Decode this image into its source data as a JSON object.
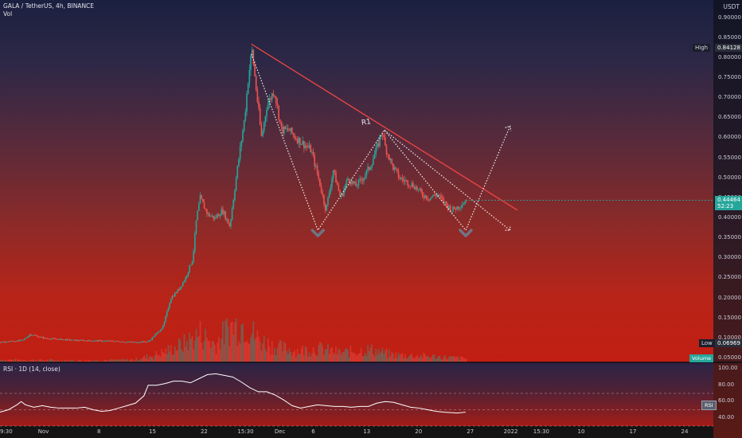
{
  "header": {
    "symbol": "GALA / TetherUS, 4h, BINANCE",
    "volume_label": "Vol",
    "currency": "USDT"
  },
  "price_panel": {
    "high_label": "High",
    "high_value": "0.84128",
    "low_label": "Low",
    "low_value": "0.06969",
    "last_value": "0.44464",
    "countdown": "52:23",
    "volume_tag": "Volume",
    "pattern_label": "R1"
  },
  "rsi_panel": {
    "title": "RSI · 1D (14, close)",
    "tag": "RSI",
    "ticks": [
      "100.00",
      "80.00",
      "60.00",
      "40.00"
    ]
  },
  "colors": {
    "up": "#26a69a",
    "down": "#ef5350",
    "trendline": "#e84444",
    "rsi_line": "#ffffff",
    "last_price": "#26a69a"
  },
  "chart_data": {
    "type": "candlestick",
    "title": "GALA / TetherUS, 4h, BINANCE",
    "price_ticks": [
      "0.90000",
      "0.85000",
      "0.80000",
      "0.75000",
      "0.70000",
      "0.65000",
      "0.60000",
      "0.55000",
      "0.50000",
      "0.45000",
      "0.40000",
      "0.35000",
      "0.30000",
      "0.25000",
      "0.20000",
      "0.15000",
      "0.10000",
      "0.05000"
    ],
    "ylim": [
      0.04,
      0.945
    ],
    "time_ticks": [
      {
        "label": "9:30",
        "x": 0
      },
      {
        "label": "Nov",
        "x": 6
      },
      {
        "label": "8",
        "x": 14
      },
      {
        "label": "15",
        "x": 21
      },
      {
        "label": "22",
        "x": 28
      },
      {
        "label": "15:30",
        "x": 33
      },
      {
        "label": "Dec",
        "x": 38
      },
      {
        "label": "6",
        "x": 43
      },
      {
        "label": "13",
        "x": 50
      },
      {
        "label": "20",
        "x": 57
      },
      {
        "label": "27",
        "x": 64
      },
      {
        "label": "2022",
        "x": 69
      },
      {
        "label": "15:30",
        "x": 73
      },
      {
        "label": "10",
        "x": 79
      },
      {
        "label": "17",
        "x": 86
      },
      {
        "label": "24",
        "x": 93
      }
    ],
    "xlim": [
      0,
      96.5
    ],
    "price_path": [
      [
        0,
        0.09
      ],
      [
        3,
        0.095
      ],
      [
        4,
        0.11
      ],
      [
        6,
        0.1
      ],
      [
        10,
        0.095
      ],
      [
        15,
        0.093
      ],
      [
        18,
        0.09
      ],
      [
        20,
        0.092
      ],
      [
        21,
        0.11
      ],
      [
        22,
        0.13
      ],
      [
        23,
        0.2
      ],
      [
        24,
        0.22
      ],
      [
        25,
        0.25
      ],
      [
        26,
        0.3
      ],
      [
        26.5,
        0.4
      ],
      [
        27,
        0.45
      ],
      [
        28,
        0.41
      ],
      [
        29,
        0.4
      ],
      [
        30,
        0.42
      ],
      [
        31,
        0.38
      ],
      [
        32,
        0.52
      ],
      [
        33,
        0.65
      ],
      [
        33.5,
        0.75
      ],
      [
        34,
        0.82
      ],
      [
        34.7,
        0.7
      ],
      [
        35.3,
        0.6
      ],
      [
        36,
        0.68
      ],
      [
        37,
        0.72
      ],
      [
        38,
        0.62
      ],
      [
        39,
        0.62
      ],
      [
        40,
        0.6
      ],
      [
        42,
        0.57
      ],
      [
        43,
        0.5
      ],
      [
        44,
        0.42
      ],
      [
        45,
        0.52
      ],
      [
        46,
        0.45
      ],
      [
        47,
        0.5
      ],
      [
        48,
        0.48
      ],
      [
        49,
        0.5
      ],
      [
        50,
        0.53
      ],
      [
        51,
        0.58
      ],
      [
        51.6,
        0.62
      ],
      [
        52,
        0.58
      ],
      [
        53,
        0.53
      ],
      [
        54,
        0.5
      ],
      [
        55,
        0.49
      ],
      [
        56,
        0.48
      ],
      [
        57,
        0.46
      ],
      [
        58,
        0.45
      ],
      [
        59,
        0.46
      ],
      [
        60,
        0.44
      ],
      [
        61,
        0.42
      ],
      [
        62,
        0.43
      ],
      [
        63,
        0.445
      ]
    ],
    "volume_path": [
      [
        0,
        4
      ],
      [
        10,
        3
      ],
      [
        18,
        4
      ],
      [
        21,
        12
      ],
      [
        23,
        20
      ],
      [
        25,
        30
      ],
      [
        27,
        45
      ],
      [
        29,
        28
      ],
      [
        31,
        55
      ],
      [
        33,
        60
      ],
      [
        35,
        35
      ],
      [
        37,
        25
      ],
      [
        40,
        18
      ],
      [
        43,
        22
      ],
      [
        46,
        15
      ],
      [
        50,
        20
      ],
      [
        53,
        12
      ],
      [
        57,
        10
      ],
      [
        63,
        6
      ]
    ],
    "trendline": [
      [
        34,
        0.835
      ],
      [
        70,
        0.42
      ]
    ],
    "projection_path": [
      [
        34,
        0.81
      ],
      [
        43,
        0.37
      ],
      [
        52,
        0.62
      ],
      [
        63,
        0.37
      ],
      [
        69,
        0.63
      ]
    ],
    "projection_path_2": [
      [
        52,
        0.62
      ],
      [
        69,
        0.37
      ]
    ],
    "bottoms": [
      [
        43,
        0.37
      ],
      [
        63,
        0.37
      ]
    ],
    "rsi": {
      "ylim": [
        30,
        108
      ],
      "values": [
        [
          0,
          47
        ],
        [
          2,
          50
        ],
        [
          4,
          56
        ],
        [
          5,
          60
        ],
        [
          6,
          56
        ],
        [
          8,
          53
        ],
        [
          10,
          55
        ],
        [
          12,
          53
        ],
        [
          14,
          52
        ],
        [
          18,
          52
        ],
        [
          20,
          53
        ],
        [
          22,
          50
        ],
        [
          24,
          48
        ],
        [
          26,
          49
        ],
        [
          28,
          52
        ],
        [
          30,
          55
        ],
        [
          32,
          58
        ],
        [
          34,
          67
        ],
        [
          35,
          80
        ],
        [
          37,
          80
        ],
        [
          39,
          82
        ],
        [
          41,
          85
        ],
        [
          43,
          85
        ],
        [
          45,
          83
        ],
        [
          47,
          88
        ],
        [
          49,
          93
        ],
        [
          51,
          94
        ],
        [
          53,
          92
        ],
        [
          55,
          90
        ],
        [
          57,
          84
        ],
        [
          59,
          77
        ],
        [
          61,
          72
        ],
        [
          63,
          72
        ],
        [
          65,
          68
        ],
        [
          67,
          62
        ],
        [
          69,
          55
        ],
        [
          71,
          52
        ],
        [
          73,
          54
        ],
        [
          75,
          56
        ],
        [
          77,
          55
        ],
        [
          79,
          54
        ],
        [
          81,
          54
        ],
        [
          83,
          53
        ],
        [
          85,
          54
        ],
        [
          87,
          54
        ],
        [
          89,
          58
        ],
        [
          91,
          60
        ],
        [
          93,
          59
        ],
        [
          95,
          56
        ],
        [
          97,
          53
        ],
        [
          99,
          52
        ],
        [
          101,
          50
        ],
        [
          103,
          48
        ],
        [
          105,
          47
        ],
        [
          108,
          46
        ],
        [
          110,
          47
        ]
      ]
    }
  }
}
